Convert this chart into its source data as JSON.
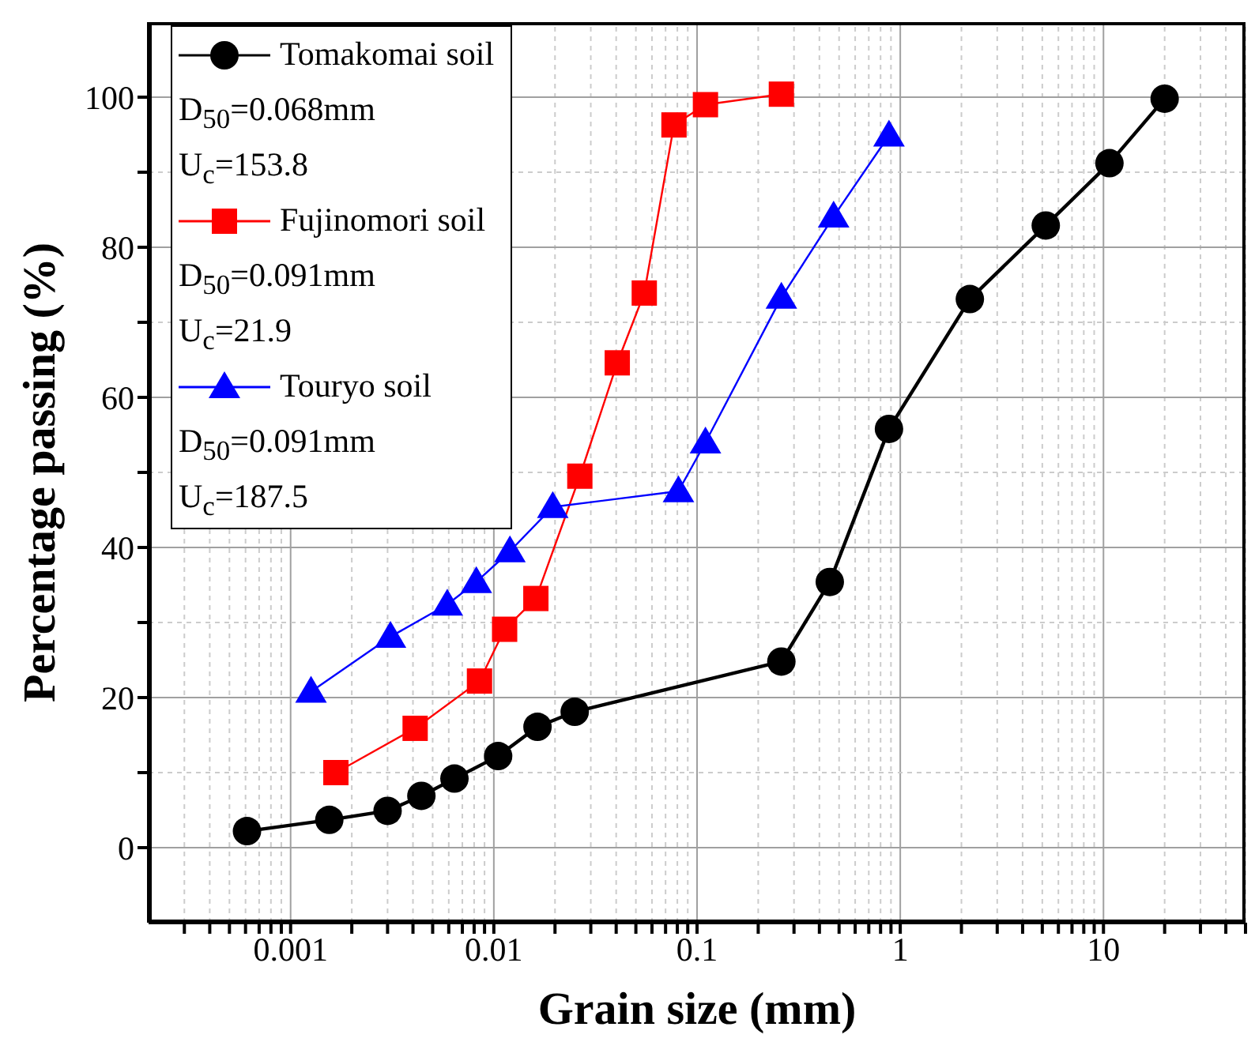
{
  "chart_data": {
    "type": "line",
    "xlabel": "Grain size (mm)",
    "ylabel": "Percentage passing (%)",
    "log": "x",
    "xlim": [
      0.0002,
      50
    ],
    "ylim": [
      -10,
      110
    ],
    "xticks": [
      {
        "value": 0.0003,
        "label": null
      },
      {
        "value": 0.0004,
        "label": null
      },
      {
        "value": 0.0005,
        "label": null
      },
      {
        "value": 0.0006,
        "label": null
      },
      {
        "value": 0.0007,
        "label": null
      },
      {
        "value": 0.0008,
        "label": null
      },
      {
        "value": 0.0009,
        "label": null
      },
      0.001,
      {
        "value": 0.002,
        "label": null
      },
      {
        "value": 0.003,
        "label": null
      },
      {
        "value": 0.004,
        "label": null
      },
      {
        "value": 0.005,
        "label": null
      },
      {
        "value": 0.006,
        "label": null
      },
      {
        "value": 0.007,
        "label": null
      },
      {
        "value": 0.008,
        "label": null
      },
      {
        "value": 0.009,
        "label": null
      },
      0.01,
      {
        "value": 0.02,
        "label": null
      },
      {
        "value": 0.03,
        "label": null
      },
      {
        "value": 0.04,
        "label": null
      },
      {
        "value": 0.05,
        "label": null
      },
      {
        "value": 0.06,
        "label": null
      },
      {
        "value": 0.07,
        "label": null
      },
      {
        "value": 0.08,
        "label": null
      },
      {
        "value": 0.09,
        "label": null
      },
      0.1,
      {
        "value": 0.2,
        "label": null
      },
      {
        "value": 0.3,
        "label": null
      },
      {
        "value": 0.4,
        "label": null
      },
      {
        "value": 0.5,
        "label": null
      },
      {
        "value": 0.6,
        "label": null
      },
      {
        "value": 0.7,
        "label": null
      },
      {
        "value": 0.8,
        "label": null
      },
      {
        "value": 0.9,
        "label": null
      },
      1,
      {
        "value": 2,
        "label": null
      },
      {
        "value": 3,
        "label": null
      },
      {
        "value": 4,
        "label": null
      },
      {
        "value": 5,
        "label": null
      },
      {
        "value": 6,
        "label": null
      },
      {
        "value": 7,
        "label": null
      },
      {
        "value": 8,
        "label": null
      },
      {
        "value": 9,
        "label": null
      },
      10,
      {
        "value": 20,
        "label": null
      },
      {
        "value": 30,
        "label": null
      },
      {
        "value": 40,
        "label": null
      },
      {
        "value": 50,
        "label": null
      }
    ],
    "yticks": [
      0,
      {
        "value": 10,
        "label": null
      },
      20,
      {
        "value": 30,
        "label": null
      },
      40,
      {
        "value": 50,
        "label": null
      },
      60,
      {
        "value": 70,
        "label": null
      },
      80,
      {
        "value": 90,
        "label": null
      },
      100
    ],
    "grid": true,
    "legend": "top left",
    "line_style": "solid",
    "annotations": [
      "D$_{50}$=0.068mm",
      "U$_{c}$=153.8",
      "D$_{50}$=0.091mm",
      "U$_{c}$=21.9",
      "D$_{50}$=0.091mm",
      "U$_{c}$=187.5"
    ],
    "series": [
      {
        "name": "Tomakomai soil",
        "color": "#000000",
        "marker": "circle",
        "x": [
          0.00061,
          0.00155,
          0.003,
          0.0044,
          0.0064,
          0.0105,
          0.0164,
          0.025,
          0.26,
          0.45,
          0.88,
          2.2,
          5.2,
          10.7,
          20
        ],
        "values": [
          2.2,
          3.7,
          4.9,
          6.9,
          9.2,
          12.2,
          16.1,
          18.1,
          24.8,
          35.4,
          55.8,
          73.1,
          82.9,
          91.2,
          99.8
        ]
      },
      {
        "name": "Fujinomori soil",
        "color": "#ff0000",
        "marker": "square",
        "x": [
          0.00167,
          0.0041,
          0.0085,
          0.0113,
          0.0161,
          0.0265,
          0.0405,
          0.055,
          0.077,
          0.11,
          0.26
        ],
        "values": [
          10.0,
          15.9,
          22.2,
          29.1,
          33.2,
          49.5,
          64.6,
          73.9,
          96.3,
          99.0,
          100.4
        ]
      },
      {
        "name": "Touryo soil",
        "color": "#0000ff",
        "marker": "triangle",
        "x": [
          0.00126,
          0.0031,
          0.0059,
          0.0082,
          0.012,
          0.0195,
          0.081,
          0.11,
          0.26,
          0.47,
          0.88
        ],
        "values": [
          20.8,
          28.1,
          32.4,
          35.4,
          39.5,
          45.4,
          47.5,
          54.0,
          73.3,
          84.1,
          94.9
        ]
      }
    ]
  }
}
